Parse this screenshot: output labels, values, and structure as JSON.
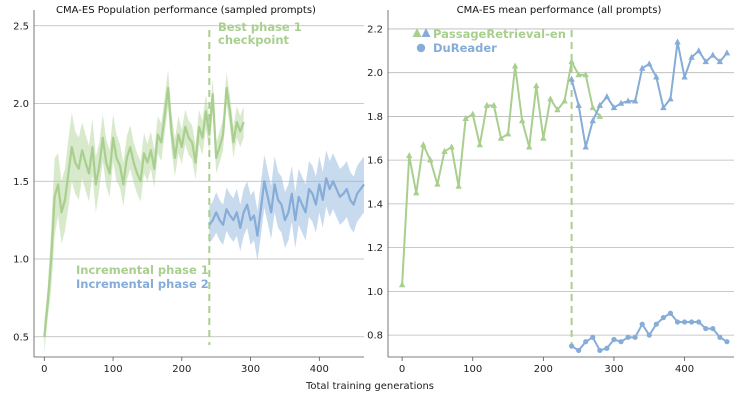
{
  "colors": {
    "phase1": "#a9cf8f",
    "phase2": "#86acd8",
    "grid": "#b8b8b8",
    "axis": "#555555",
    "text": "#222222"
  },
  "xlabel": "Total training generations",
  "chart_data": [
    {
      "type": "line",
      "title": "CMA-ES Population performance (sampled prompts)",
      "xlim": [
        -15,
        465
      ],
      "ylim": [
        0.37,
        2.55
      ],
      "xticks": [
        0,
        100,
        200,
        300,
        400
      ],
      "yticks": [
        0.5,
        1.0,
        1.5,
        2.0,
        2.5
      ],
      "ytick_labels": [
        "0.5",
        "1.0",
        "1.5",
        "2.0",
        "2.5"
      ],
      "grid": "horizontal",
      "phase_boundary_x": 240,
      "annotations": [
        {
          "lines": [
            "Best phase 1",
            "checkpoint"
          ],
          "color": "phase1"
        },
        {
          "lines": [
            "Incremental phase 1"
          ],
          "color": "phase1"
        },
        {
          "lines": [
            "Incremental phase 2"
          ],
          "color": "phase2"
        }
      ],
      "series": [
        {
          "color": "phase1",
          "x": [
            0,
            5,
            10,
            15,
            20,
            25,
            30,
            35,
            40,
            45,
            50,
            55,
            60,
            65,
            70,
            75,
            80,
            85,
            90,
            95,
            100,
            105,
            110,
            115,
            120,
            125,
            130,
            135,
            140,
            145,
            150,
            155,
            160,
            165,
            170,
            175,
            180,
            185,
            190,
            195,
            200,
            205,
            210,
            215,
            220,
            225,
            230,
            235,
            240,
            245,
            250,
            255,
            260,
            265,
            270,
            275,
            280,
            285,
            290
          ],
          "y": [
            0.5,
            0.72,
            1.0,
            1.4,
            1.48,
            1.3,
            1.38,
            1.55,
            1.72,
            1.62,
            1.58,
            1.7,
            1.62,
            1.55,
            1.72,
            1.48,
            1.6,
            1.78,
            1.62,
            1.55,
            1.78,
            1.65,
            1.6,
            1.48,
            1.65,
            1.72,
            1.62,
            1.55,
            1.5,
            1.68,
            1.62,
            1.7,
            1.58,
            1.8,
            1.75,
            1.92,
            2.1,
            1.82,
            1.65,
            1.8,
            1.72,
            1.85,
            1.78,
            1.75,
            1.62,
            1.85,
            1.78,
            1.95,
            1.8,
            2.06,
            1.65,
            1.72,
            1.8,
            2.1,
            1.95,
            1.75,
            1.88,
            1.82,
            1.88
          ],
          "band": [
            0.1,
            0.1,
            0.2,
            0.25,
            0.2,
            0.2,
            0.2,
            0.22,
            0.22,
            0.2,
            0.2,
            0.18,
            0.18,
            0.18,
            0.18,
            0.18,
            0.15,
            0.15,
            0.15,
            0.15,
            0.15,
            0.15,
            0.14,
            0.14,
            0.14,
            0.14,
            0.13,
            0.13,
            0.13,
            0.13,
            0.12,
            0.12,
            0.12,
            0.12,
            0.12,
            0.12,
            0.12,
            0.12,
            0.12,
            0.12,
            0.11,
            0.11,
            0.11,
            0.11,
            0.11,
            0.11,
            0.11,
            0.11,
            0.11,
            0.1,
            0.1,
            0.1,
            0.1,
            0.1,
            0.1,
            0.1,
            0.1,
            0.1,
            0.1
          ]
        },
        {
          "color": "phase2",
          "x": [
            240,
            245,
            250,
            255,
            260,
            265,
            270,
            275,
            280,
            285,
            290,
            295,
            300,
            305,
            310,
            315,
            320,
            325,
            330,
            335,
            340,
            345,
            350,
            355,
            360,
            365,
            370,
            375,
            380,
            385,
            390,
            395,
            400,
            405,
            410,
            415,
            420,
            425,
            430,
            435,
            440,
            445,
            450,
            455,
            460,
            465
          ],
          "y": [
            1.22,
            1.25,
            1.3,
            1.25,
            1.22,
            1.32,
            1.28,
            1.25,
            1.3,
            1.2,
            1.3,
            1.35,
            1.25,
            1.28,
            1.15,
            1.32,
            1.5,
            1.4,
            1.3,
            1.48,
            1.38,
            1.35,
            1.25,
            1.3,
            1.42,
            1.25,
            1.4,
            1.35,
            1.3,
            1.45,
            1.42,
            1.35,
            1.48,
            1.38,
            1.52,
            1.45,
            1.5,
            1.45,
            1.4,
            1.42,
            1.45,
            1.38,
            1.35,
            1.42,
            1.45,
            1.48
          ],
          "band": [
            0.12,
            0.12,
            0.13,
            0.13,
            0.13,
            0.14,
            0.14,
            0.14,
            0.15,
            0.15,
            0.15,
            0.15,
            0.16,
            0.16,
            0.16,
            0.17,
            0.17,
            0.17,
            0.17,
            0.18,
            0.18,
            0.18,
            0.18,
            0.18,
            0.18,
            0.18,
            0.18,
            0.18,
            0.18,
            0.18,
            0.18,
            0.18,
            0.18,
            0.18,
            0.18,
            0.18,
            0.18,
            0.18,
            0.18,
            0.18,
            0.18,
            0.18,
            0.18,
            0.18,
            0.18,
            0.18
          ]
        }
      ]
    },
    {
      "type": "line",
      "title": "CMA-ES mean performance (all prompts)",
      "xlim": [
        -20,
        470
      ],
      "ylim": [
        0.7,
        2.25
      ],
      "xticks": [
        0,
        100,
        200,
        300,
        400
      ],
      "yticks": [
        0.8,
        1.0,
        1.2,
        1.4,
        1.6,
        1.8,
        2.0,
        2.2
      ],
      "ytick_labels": [
        "0.8",
        "1.0",
        "1.2",
        "1.4",
        "1.6",
        "1.8",
        "2.0",
        "2.2"
      ],
      "grid": "horizontal",
      "phase_boundary_x": 240,
      "legend": "top-left",
      "legend_entries": [
        {
          "label": "PassageRetrieval-en",
          "marker": "triangle"
        },
        {
          "label": "DuReader",
          "marker": "circle"
        }
      ],
      "series": [
        {
          "name": "PassageRetrieval-en",
          "color": "phase1",
          "marker": "triangle",
          "x": [
            0,
            10,
            20,
            30,
            40,
            50,
            60,
            70,
            80,
            90,
            100,
            110,
            120,
            130,
            140,
            150,
            160,
            170,
            180,
            190,
            200,
            210,
            220,
            230,
            240,
            250,
            260,
            270,
            280
          ],
          "y": [
            1.03,
            1.62,
            1.45,
            1.67,
            1.6,
            1.49,
            1.64,
            1.66,
            1.48,
            1.79,
            1.81,
            1.67,
            1.85,
            1.85,
            1.7,
            1.72,
            2.03,
            1.78,
            1.66,
            1.94,
            1.7,
            1.88,
            1.83,
            1.87,
            2.05,
            1.99,
            1.99,
            1.84,
            1.8
          ]
        },
        {
          "name": "PassageRetrieval-en",
          "color": "phase2",
          "marker": "triangle",
          "x": [
            240,
            250,
            260,
            270,
            280,
            290,
            300,
            310,
            320,
            330,
            340,
            350,
            360,
            370,
            380,
            390,
            400,
            410,
            420,
            430,
            440,
            450,
            460
          ],
          "y": [
            1.97,
            1.85,
            1.66,
            1.78,
            1.85,
            1.89,
            1.84,
            1.86,
            1.87,
            1.87,
            2.02,
            2.04,
            1.98,
            1.84,
            1.88,
            2.14,
            1.98,
            2.07,
            2.1,
            2.05,
            2.08,
            2.05,
            2.09
          ]
        },
        {
          "name": "DuReader",
          "color": "phase2",
          "marker": "circle",
          "x": [
            240,
            250,
            260,
            270,
            280,
            290,
            300,
            310,
            320,
            330,
            340,
            350,
            360,
            370,
            380,
            390,
            400,
            410,
            420,
            430,
            440,
            450,
            460
          ],
          "y": [
            0.75,
            0.73,
            0.77,
            0.79,
            0.73,
            0.74,
            0.78,
            0.77,
            0.79,
            0.79,
            0.85,
            0.8,
            0.85,
            0.88,
            0.9,
            0.86,
            0.86,
            0.86,
            0.86,
            0.83,
            0.83,
            0.79,
            0.77
          ]
        }
      ]
    }
  ]
}
